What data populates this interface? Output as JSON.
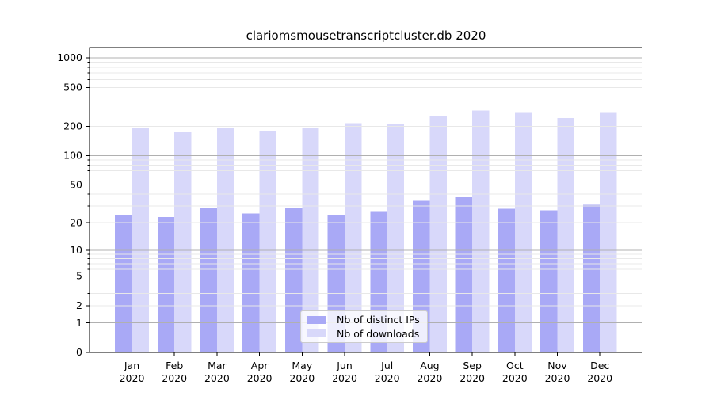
{
  "chart_data": {
    "type": "bar",
    "title": "clariomsmousetranscriptcluster.db 2020",
    "xlabel": "",
    "ylabel": "",
    "yscale": "log1p",
    "ylim": [
      0,
      1290
    ],
    "yticks": [
      0,
      1,
      2,
      5,
      10,
      20,
      50,
      100,
      200,
      500,
      1000
    ],
    "grid": "on",
    "legend_position": "inside-bottom-center",
    "categories": [
      "Jan 2020",
      "Feb 2020",
      "Mar 2020",
      "Apr 2020",
      "May 2020",
      "Jun 2020",
      "Jul 2020",
      "Aug 2020",
      "Sep 2020",
      "Oct 2020",
      "Nov 2020",
      "Dec 2020"
    ],
    "series": [
      {
        "name": "Nb of distinct IPs",
        "color": "#a9a9f6",
        "values": [
          24,
          23,
          29,
          25,
          29,
          24,
          26,
          34,
          37,
          28,
          27,
          31
        ]
      },
      {
        "name": "Nb of downloads",
        "color": "#d8d8fa",
        "values": [
          194,
          174,
          191,
          181,
          191,
          215,
          213,
          252,
          290,
          275,
          242,
          275
        ]
      }
    ]
  },
  "colors": {
    "major_grid": "#b0b0b0",
    "minor_grid": "#e8e8e8",
    "axis": "#000000",
    "text": "#000000"
  }
}
